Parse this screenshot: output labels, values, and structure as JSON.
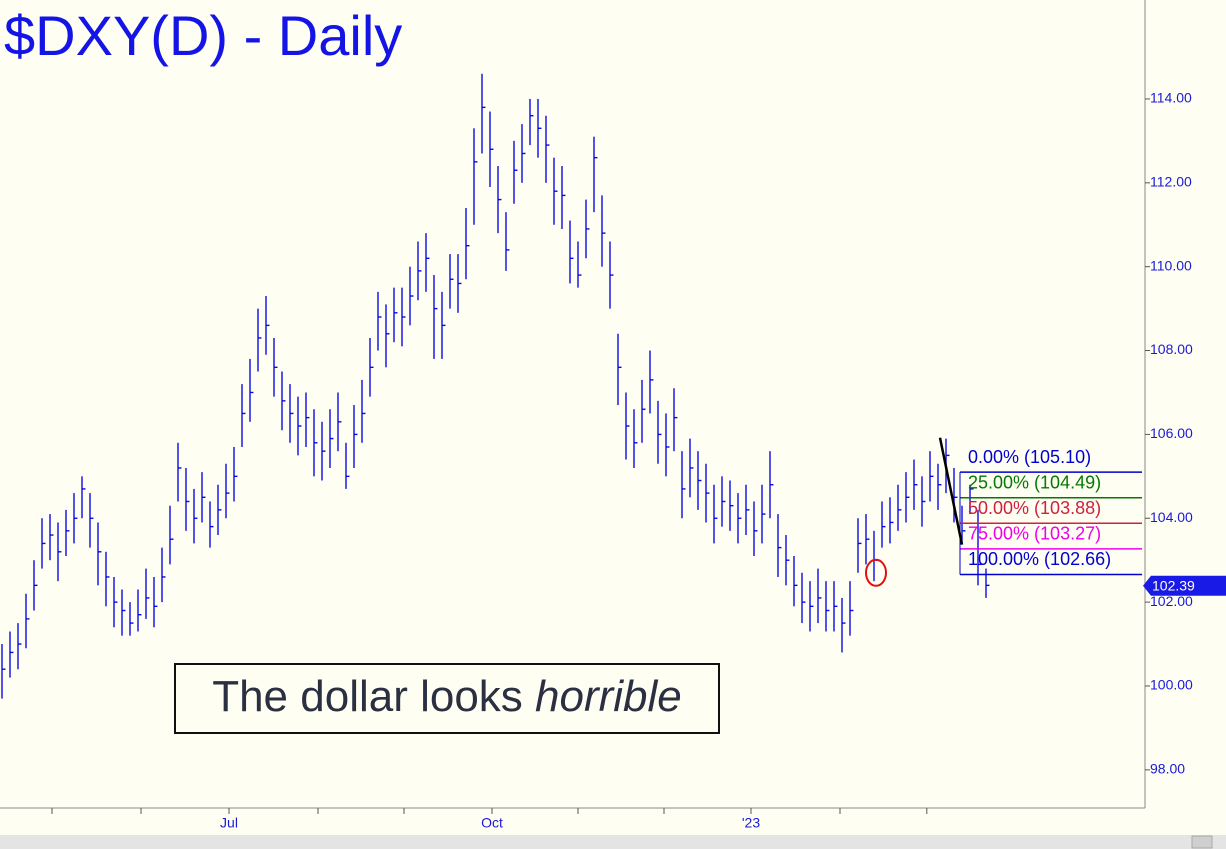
{
  "chart_data": {
    "type": "ohlc",
    "title": "$DXY(D) - Daily",
    "color": "#0a0ae6",
    "high": [
      101.0,
      101.3,
      101.5,
      102.2,
      103.0,
      104.0,
      104.1,
      103.9,
      104.2,
      104.6,
      105.0,
      104.6,
      103.9,
      103.2,
      102.6,
      102.3,
      102.0,
      102.3,
      102.8,
      102.6,
      103.3,
      104.3,
      105.8,
      105.2,
      104.7,
      105.1,
      104.4,
      104.8,
      105.3,
      105.7,
      107.2,
      107.8,
      109.0,
      109.3,
      108.3,
      107.5,
      107.2,
      106.9,
      107.0,
      106.6,
      106.3,
      106.6,
      107.0,
      105.8,
      106.7,
      107.3,
      108.3,
      109.4,
      109.1,
      109.5,
      109.5,
      110.0,
      110.6,
      110.8,
      109.8,
      109.4,
      110.3,
      110.3,
      111.4,
      113.3,
      114.6,
      113.7,
      112.4,
      111.3,
      113.0,
      113.4,
      114.0,
      114.0,
      113.6,
      112.6,
      112.4,
      111.1,
      110.6,
      111.6,
      113.1,
      111.7,
      110.6,
      108.4,
      107.0,
      106.6,
      107.3,
      108.0,
      106.8,
      106.5,
      107.1,
      105.6,
      105.9,
      105.6,
      105.3,
      104.8,
      105.0,
      104.9,
      104.6,
      104.8,
      104.4,
      104.8,
      105.6,
      104.1,
      103.6,
      103.1,
      102.7,
      102.5,
      102.8,
      102.5,
      102.5,
      102.1,
      102.5,
      104.0,
      104.1,
      103.7,
      104.4,
      104.5,
      104.8,
      105.1,
      105.4,
      105.0,
      105.6,
      105.3,
      105.9,
      105.2,
      104.3,
      104.8,
      104.2,
      102.8
    ],
    "low": [
      99.7,
      100.2,
      100.4,
      100.9,
      101.8,
      102.8,
      103.0,
      102.5,
      103.1,
      103.4,
      104.0,
      103.3,
      102.4,
      101.9,
      101.4,
      101.2,
      101.2,
      101.3,
      101.6,
      101.4,
      102.0,
      102.9,
      104.4,
      103.7,
      103.4,
      103.9,
      103.3,
      103.6,
      104.0,
      104.4,
      105.7,
      106.3,
      107.5,
      107.9,
      106.9,
      106.1,
      105.8,
      105.5,
      105.7,
      105.0,
      104.9,
      105.2,
      105.6,
      104.7,
      105.2,
      105.8,
      106.9,
      108.0,
      107.6,
      108.2,
      108.1,
      108.6,
      109.2,
      109.4,
      107.8,
      107.8,
      109.0,
      108.9,
      109.7,
      111.0,
      112.7,
      111.9,
      110.8,
      109.9,
      111.5,
      112.0,
      112.9,
      112.6,
      112.0,
      111.0,
      110.9,
      109.6,
      109.5,
      110.2,
      111.3,
      110.0,
      109.0,
      106.7,
      105.4,
      105.2,
      105.8,
      106.5,
      105.3,
      105.0,
      105.6,
      104.0,
      104.5,
      104.2,
      103.9,
      103.4,
      103.8,
      103.7,
      103.4,
      103.6,
      103.1,
      103.4,
      104.0,
      102.6,
      102.4,
      101.9,
      101.5,
      101.3,
      101.5,
      101.3,
      101.3,
      100.8,
      101.2,
      102.7,
      102.9,
      102.5,
      103.3,
      103.4,
      103.7,
      103.9,
      104.2,
      103.8,
      104.4,
      104.2,
      104.6,
      103.9,
      103.4,
      104.1,
      102.4,
      102.1
    ],
    "close": [
      100.4,
      100.8,
      101.0,
      101.6,
      102.4,
      103.4,
      103.6,
      103.2,
      103.7,
      104.0,
      104.7,
      104.0,
      103.2,
      102.6,
      102.0,
      101.8,
      101.5,
      101.7,
      102.1,
      101.9,
      102.6,
      103.5,
      105.2,
      104.4,
      104.0,
      104.5,
      103.8,
      104.2,
      104.6,
      105.0,
      106.5,
      107.0,
      108.3,
      108.6,
      107.6,
      106.8,
      106.5,
      106.2,
      106.4,
      105.8,
      105.6,
      105.9,
      106.3,
      105.0,
      106.0,
      106.5,
      107.6,
      108.8,
      108.4,
      108.9,
      108.8,
      109.3,
      109.9,
      110.2,
      109.0,
      108.6,
      109.7,
      109.6,
      110.5,
      112.5,
      113.8,
      112.8,
      111.6,
      110.4,
      112.3,
      112.7,
      113.6,
      113.3,
      112.9,
      111.8,
      111.7,
      110.2,
      109.8,
      110.9,
      112.6,
      110.8,
      109.8,
      107.6,
      106.2,
      105.8,
      106.6,
      107.3,
      106.0,
      105.7,
      106.4,
      104.7,
      105.2,
      104.9,
      104.6,
      104.0,
      104.4,
      104.3,
      104.0,
      104.2,
      103.7,
      104.1,
      104.8,
      103.3,
      103.0,
      102.4,
      102.0,
      101.9,
      102.1,
      101.8,
      101.9,
      101.5,
      101.8,
      103.4,
      103.5,
      103.0,
      103.8,
      103.9,
      104.2,
      104.5,
      104.8,
      104.4,
      105.0,
      104.8,
      105.5,
      104.5,
      103.7,
      104.7,
      102.9,
      102.4
    ],
    "ylim": [
      97.09,
      116.36
    ],
    "yticks": [
      {
        "value": 98,
        "label": "98.00"
      },
      {
        "value": 100,
        "label": "100.00"
      },
      {
        "value": 102,
        "label": "102.00"
      },
      {
        "value": 104,
        "label": "104.00"
      },
      {
        "value": 106,
        "label": "106.00"
      },
      {
        "value": 108,
        "label": "108.00"
      },
      {
        "value": 110,
        "label": "110.00"
      },
      {
        "value": 112,
        "label": "112.00"
      },
      {
        "value": 114,
        "label": "114.00"
      }
    ],
    "xlim": [
      -0.25,
      142.875
    ],
    "xticks": [
      {
        "value": 28.375,
        "label": "Jul"
      },
      {
        "value": 61.25,
        "label": "Oct"
      },
      {
        "value": 93.625,
        "label": "'23"
      }
    ],
    "xminor_ticks": [
      6.25,
      17.375,
      39.5,
      50.25,
      72,
      82.75,
      104.75,
      115.6
    ],
    "fib_levels": [
      {
        "label": "0.00% (105.10)",
        "value": 105.1,
        "color": "#0000d0"
      },
      {
        "label": "25.00% (104.49)",
        "value": 104.49,
        "color": "#007a00"
      },
      {
        "label": "50.00% (103.88)",
        "value": 103.88,
        "color": "#d02040"
      },
      {
        "label": "75.00% (103.27)",
        "value": 103.27,
        "color": "#ee00ee"
      },
      {
        "label": "100.00% (102.66)",
        "value": 102.66,
        "color": "#0000d0"
      }
    ],
    "trend_line": {
      "x": [
        117.25,
        120
      ],
      "y": [
        105.92,
        103.37
      ]
    },
    "marker_circle": {
      "x": 109.25,
      "y": 102.7
    },
    "last_price": 102.39,
    "annotation": {
      "text": "The dollar looks ",
      "emphasis": "horrible"
    }
  }
}
